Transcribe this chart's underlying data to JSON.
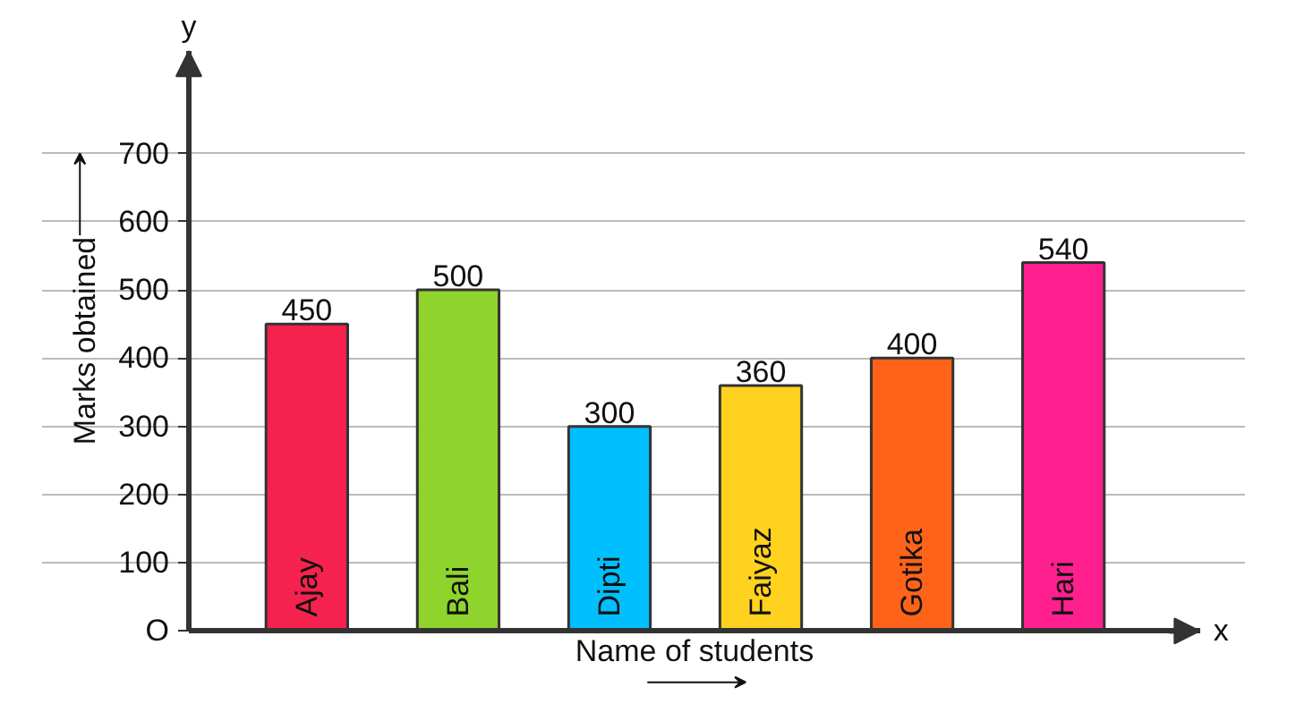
{
  "chart_data": {
    "type": "bar",
    "categories": [
      "Ajay",
      "Bali",
      "Dipti",
      "Faiyaz",
      "Gotika",
      "Hari"
    ],
    "values": [
      450,
      500,
      300,
      360,
      400,
      540
    ],
    "colors": [
      "#f5214f",
      "#8fd42c",
      "#00bfff",
      "#ffd21f",
      "#ff6319",
      "#ff1f8f"
    ],
    "xlabel": "Name of students",
    "ylabel": "Marks obtained",
    "ylim": [
      0,
      850
    ],
    "yticks": [
      {
        "value": 0,
        "label": "O"
      },
      100,
      200,
      300,
      400,
      500,
      600,
      700
    ],
    "annotations": [
      "x",
      "y"
    ],
    "data_labels": true,
    "grid": "y",
    "legend": false
  }
}
